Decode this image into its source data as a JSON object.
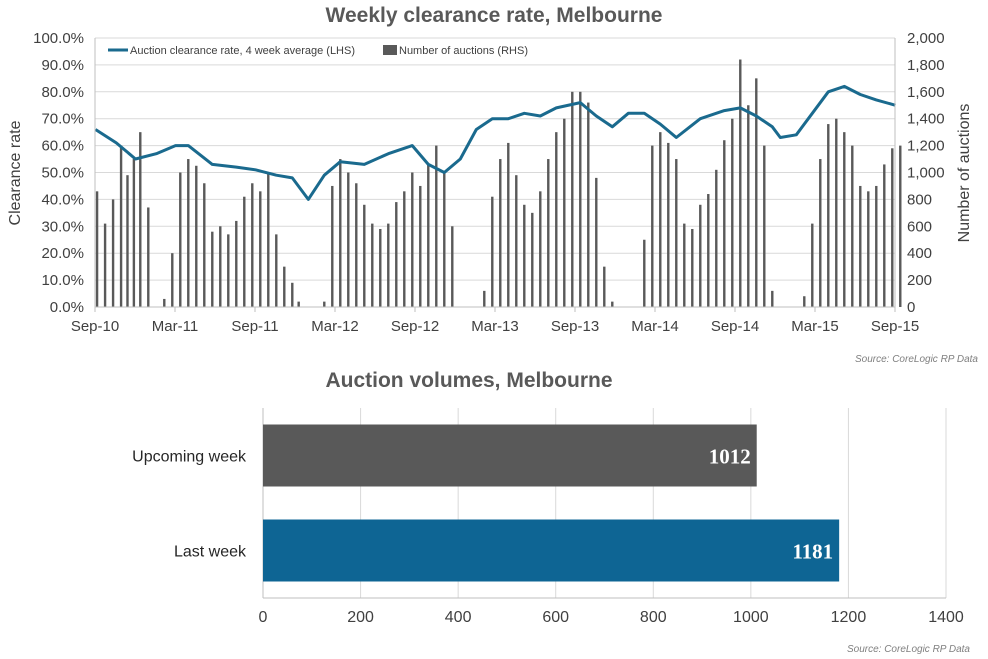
{
  "chart_data": [
    {
      "type": "line+bar",
      "title": "Weekly clearance rate, Melbourne",
      "ylabel": "Clearance rate",
      "y2label": "Number of auctions",
      "ylim": [
        0,
        100
      ],
      "y2lim": [
        0,
        2000
      ],
      "y_ticks": [
        "0.0%",
        "10.0%",
        "20.0%",
        "30.0%",
        "40.0%",
        "50.0%",
        "60.0%",
        "70.0%",
        "80.0%",
        "90.0%",
        "100.0%"
      ],
      "y2_ticks": [
        "0",
        "200",
        "400",
        "600",
        "800",
        "1,000",
        "1,200",
        "1,400",
        "1,600",
        "1,800",
        "2,000"
      ],
      "x_ticks": [
        "Sep-10",
        "Mar-11",
        "Sep-11",
        "Mar-12",
        "Sep-12",
        "Mar-13",
        "Sep-13",
        "Mar-14",
        "Sep-14",
        "Mar-15",
        "Sep-15"
      ],
      "legend": [
        "Auction clearance rate, 4 week average (LHS)",
        "Number of auctions (RHS)"
      ],
      "legend_position": "top-left",
      "colors": {
        "line": "#1a6a8e",
        "bars": "#595959"
      },
      "line_4wk_avg": {
        "name": "Auction clearance rate, 4 week average (LHS)",
        "x_years": [
          2010.67,
          2010.8,
          2010.92,
          2011.05,
          2011.17,
          2011.25,
          2011.4,
          2011.55,
          2011.67,
          2011.8,
          2011.9,
          2012.0,
          2012.1,
          2012.2,
          2012.35,
          2012.5,
          2012.65,
          2012.75,
          2012.85,
          2012.95,
          2013.05,
          2013.15,
          2013.25,
          2013.35,
          2013.45,
          2013.55,
          2013.7,
          2013.8,
          2013.9,
          2014.0,
          2014.1,
          2014.2,
          2014.3,
          2014.45,
          2014.6,
          2014.7,
          2014.8,
          2014.9,
          2014.95,
          2015.05,
          2015.15,
          2015.25,
          2015.35,
          2015.45,
          2015.55,
          2015.67
        ],
        "values": [
          66,
          61,
          55,
          57,
          60,
          60,
          53,
          52,
          51,
          49,
          48,
          40,
          49,
          54,
          53,
          57,
          60,
          53,
          50,
          55,
          66,
          70,
          70,
          72,
          71,
          74,
          76,
          71,
          67,
          72,
          72,
          68,
          63,
          70,
          73,
          74,
          71,
          67,
          63,
          64,
          72,
          80,
          82,
          79,
          77,
          75
        ]
      },
      "bars_weekly_auctions": {
        "name": "Number of auctions (RHS)",
        "x_years": [
          2010.68,
          2010.73,
          2010.78,
          2010.83,
          2010.87,
          2010.91,
          2010.95,
          2011.0,
          2011.1,
          2011.15,
          2011.2,
          2011.25,
          2011.3,
          2011.35,
          2011.4,
          2011.45,
          2011.5,
          2011.55,
          2011.6,
          2011.65,
          2011.7,
          2011.75,
          2011.8,
          2011.85,
          2011.9,
          2011.94,
          2012.1,
          2012.15,
          2012.2,
          2012.25,
          2012.3,
          2012.35,
          2012.4,
          2012.45,
          2012.5,
          2012.55,
          2012.6,
          2012.65,
          2012.7,
          2012.75,
          2012.8,
          2012.85,
          2012.9,
          2013.1,
          2013.15,
          2013.2,
          2013.25,
          2013.3,
          2013.35,
          2013.4,
          2013.45,
          2013.5,
          2013.55,
          2013.6,
          2013.65,
          2013.7,
          2013.75,
          2013.8,
          2013.85,
          2013.9,
          2014.1,
          2014.15,
          2014.2,
          2014.25,
          2014.3,
          2014.35,
          2014.4,
          2014.45,
          2014.5,
          2014.55,
          2014.6,
          2014.65,
          2014.7,
          2014.75,
          2014.8,
          2014.85,
          2014.9,
          2015.1,
          2015.15,
          2015.2,
          2015.25,
          2015.3,
          2015.35,
          2015.4,
          2015.45,
          2015.5,
          2015.55,
          2015.6,
          2015.65,
          2015.7
        ],
        "values": [
          860,
          620,
          800,
          1200,
          980,
          1100,
          1300,
          740,
          60,
          400,
          1000,
          1100,
          1050,
          920,
          560,
          600,
          540,
          640,
          820,
          920,
          860,
          1000,
          540,
          300,
          180,
          40,
          40,
          900,
          1100,
          1000,
          920,
          760,
          620,
          580,
          620,
          780,
          860,
          1000,
          900,
          1060,
          1200,
          1000,
          600,
          120,
          820,
          1100,
          1220,
          980,
          760,
          700,
          860,
          1100,
          1300,
          1400,
          1600,
          1600,
          1520,
          960,
          300,
          40,
          500,
          1200,
          1300,
          1220,
          1100,
          620,
          580,
          760,
          840,
          1020,
          1240,
          1400,
          1840,
          1500,
          1700,
          1200,
          120,
          80,
          620,
          1100,
          1360,
          1400,
          1300,
          1200,
          900,
          860,
          900,
          1060,
          1180,
          1200
        ]
      }
    },
    {
      "type": "bar",
      "orientation": "horizontal",
      "title": "Auction volumes, Melbourne",
      "categories": [
        "Upcoming week",
        "Last week"
      ],
      "values": [
        1012,
        1181
      ],
      "data_labels": [
        "1012",
        "1181"
      ],
      "xlim": [
        0,
        1400
      ],
      "x_ticks": [
        "0",
        "200",
        "400",
        "600",
        "800",
        "1000",
        "1200",
        "1400"
      ],
      "colors": [
        "#595959",
        "#0e6594"
      ]
    }
  ],
  "sources": [
    "Source: CoreLogic  RP Data",
    "Source: CoreLogic  RP Data"
  ]
}
